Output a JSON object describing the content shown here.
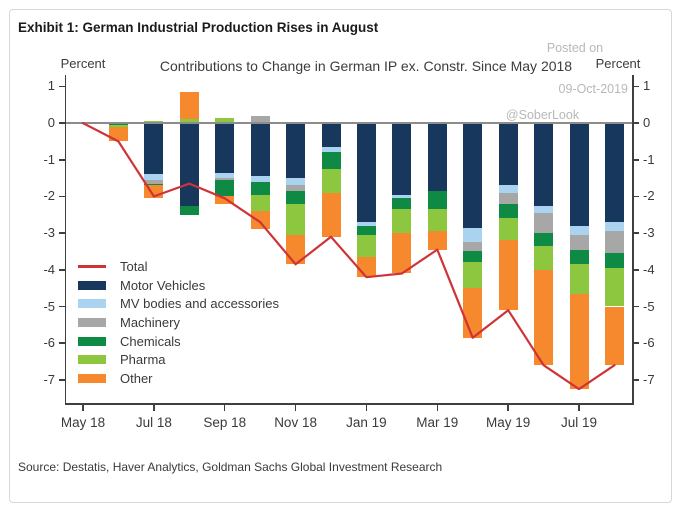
{
  "header": {
    "title": "Exhibit 1: German Industrial Production Rises in August"
  },
  "axes": {
    "left_unit": "Percent",
    "right_unit": "Percent"
  },
  "watermark": {
    "line1": "Posted on",
    "line2": "09-Oct-2019",
    "line3": "@SoberLook"
  },
  "source": "Source: Destatis, Haver Analytics, Goldman Sachs Global Investment Research",
  "colors": {
    "motor_vehicles": "#17375d",
    "mv_bodies": "#aad3f0",
    "machinery": "#a7a7a7",
    "chemicals": "#0f8a45",
    "pharma": "#8dc63f",
    "other": "#f6882d",
    "total_line": "#cf3338",
    "zero_line": "#8c8c8c",
    "axis": "#3f3f3f"
  },
  "chart_data": {
    "type": "bar",
    "subtype": "stacked-bar-with-total-line",
    "title": "Contributions to Change in German IP ex. Constr. Since May 2018",
    "xlabel": "",
    "ylabel": "Percent",
    "ylim": [
      -7.63,
      1.31
    ],
    "grid": false,
    "legend_position": "inside-bottom-left",
    "categories": [
      "May 18",
      "Jun 18",
      "Jul 18",
      "Aug 18",
      "Sep 18",
      "Oct 18",
      "Nov 18",
      "Dec 18",
      "Jan 19",
      "Feb 19",
      "Mar 19",
      "Apr 19",
      "May 19",
      "Jun 19",
      "Jul 19",
      "Aug 19"
    ],
    "x_tick_labels": [
      "May 18",
      "Jul 18",
      "Sep 18",
      "Nov 18",
      "Jan 19",
      "Mar 19",
      "May 19",
      "Jul 19"
    ],
    "x_tick_indices": [
      0,
      2,
      4,
      6,
      8,
      10,
      12,
      14
    ],
    "y_ticks": [
      1,
      0,
      -1,
      -2,
      -3,
      -4,
      -5,
      -6,
      -7
    ],
    "series": [
      {
        "name": "Motor Vehicles",
        "key": "motor_vehicles",
        "values": [
          0,
          0,
          -1.4,
          -2.25,
          -1.35,
          -1.45,
          -1.5,
          -0.65,
          -2.7,
          -1.95,
          -1.85,
          -2.85,
          -1.7,
          -2.25,
          -2.8,
          -2.7
        ]
      },
      {
        "name": "MV bodies and accessories",
        "key": "mv_bodies",
        "values": [
          0,
          0,
          -0.15,
          0,
          -0.15,
          -0.15,
          -0.2,
          -0.15,
          -0.1,
          -0.1,
          0,
          -0.4,
          -0.2,
          -0.2,
          -0.25,
          -0.25
        ]
      },
      {
        "name": "Machinery",
        "key": "machinery",
        "values": [
          0,
          0,
          -0.1,
          0,
          -0.05,
          0.2,
          -0.15,
          0,
          0,
          0,
          0,
          -0.25,
          -0.3,
          -0.55,
          -0.4,
          -0.6
        ]
      },
      {
        "name": "Chemicals",
        "key": "chemicals",
        "values": [
          0,
          -0.05,
          -0.05,
          -0.25,
          -0.45,
          -0.35,
          -0.35,
          -0.45,
          -0.25,
          -0.3,
          -0.5,
          -0.3,
          -0.4,
          -0.35,
          -0.4,
          -0.4
        ]
      },
      {
        "name": "Pharma",
        "key": "pharma",
        "values": [
          0,
          -0.05,
          0.05,
          0.1,
          0.15,
          -0.45,
          -0.85,
          -0.65,
          -0.6,
          -0.65,
          -0.6,
          -0.7,
          -0.6,
          -0.65,
          -0.8,
          -1.05
        ]
      },
      {
        "name": "Other",
        "key": "other",
        "values": [
          0,
          -0.4,
          -0.35,
          0.75,
          -0.2,
          -0.5,
          -0.8,
          -1.2,
          -0.55,
          -1.1,
          -0.5,
          -1.35,
          -1.9,
          -2.6,
          -2.6,
          -1.6
        ]
      }
    ],
    "line_series": {
      "name": "Total",
      "key": "total_line",
      "values": [
        0,
        -0.5,
        -2.0,
        -1.65,
        -2.05,
        -2.7,
        -3.85,
        -3.1,
        -4.2,
        -4.1,
        -3.45,
        -5.85,
        -5.1,
        -6.6,
        -7.25,
        -6.6
      ]
    }
  }
}
